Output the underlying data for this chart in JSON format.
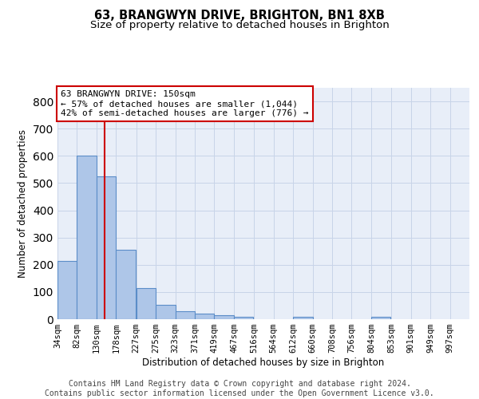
{
  "title_line1": "63, BRANGWYN DRIVE, BRIGHTON, BN1 8XB",
  "title_line2": "Size of property relative to detached houses in Brighton",
  "xlabel": "Distribution of detached houses by size in Brighton",
  "ylabel": "Number of detached properties",
  "bin_labels": [
    "34sqm",
    "82sqm",
    "130sqm",
    "178sqm",
    "227sqm",
    "275sqm",
    "323sqm",
    "371sqm",
    "419sqm",
    "467sqm",
    "516sqm",
    "564sqm",
    "612sqm",
    "660sqm",
    "708sqm",
    "756sqm",
    "804sqm",
    "853sqm",
    "901sqm",
    "949sqm",
    "997sqm"
  ],
  "bin_edges": [
    34,
    82,
    130,
    178,
    227,
    275,
    323,
    371,
    419,
    467,
    516,
    564,
    612,
    660,
    708,
    756,
    804,
    853,
    901,
    949,
    997
  ],
  "bar_heights": [
    215,
    600,
    525,
    255,
    115,
    52,
    30,
    20,
    15,
    10,
    0,
    0,
    10,
    0,
    0,
    0,
    8,
    0,
    0,
    0,
    0
  ],
  "bar_color": "#aec6e8",
  "bar_edge_color": "#5b8dc8",
  "property_size": 150,
  "vline_color": "#cc0000",
  "annotation_line1": "63 BRANGWYN DRIVE: 150sqm",
  "annotation_line2": "← 57% of detached houses are smaller (1,044)",
  "annotation_line3": "42% of semi-detached houses are larger (776) →",
  "annotation_box_color": "#cc0000",
  "annotation_text_color": "#000000",
  "ylim": [
    0,
    850
  ],
  "yticks": [
    0,
    100,
    200,
    300,
    400,
    500,
    600,
    700,
    800
  ],
  "grid_color": "#c8d4e8",
  "background_color": "#e8eef8",
  "footer_text": "Contains HM Land Registry data © Crown copyright and database right 2024.\nContains public sector information licensed under the Open Government Licence v3.0.",
  "title_fontsize": 10.5,
  "subtitle_fontsize": 9.5,
  "axis_label_fontsize": 8.5,
  "tick_fontsize": 7.5,
  "annotation_fontsize": 8,
  "footer_fontsize": 7
}
